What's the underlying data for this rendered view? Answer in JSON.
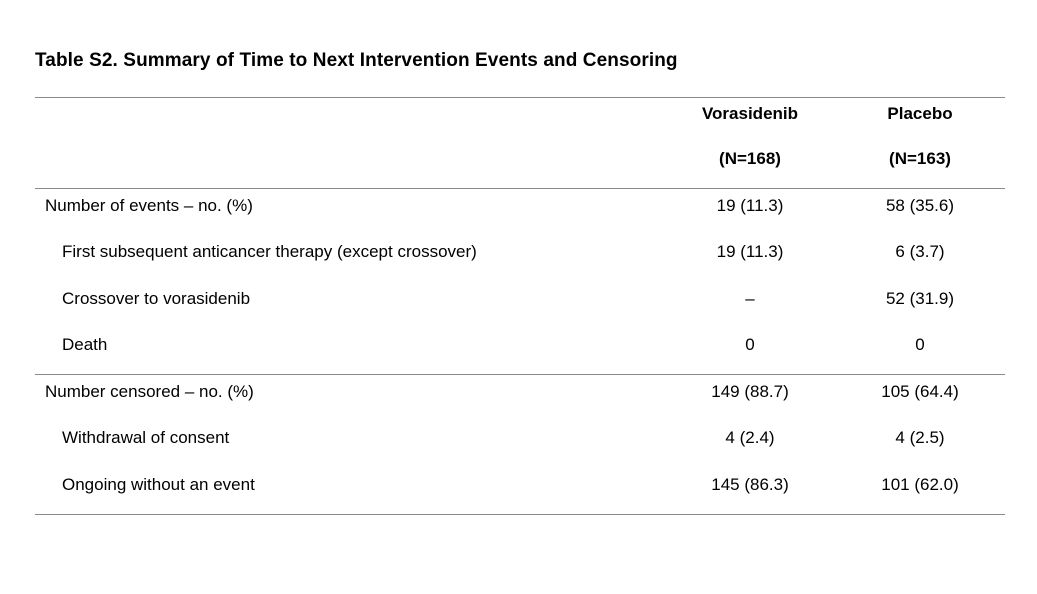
{
  "page": {
    "title": "Table S2. Summary of Time to Next Intervention Events and Censoring"
  },
  "table": {
    "columns": [
      {
        "line1": "Vorasidenib",
        "line2": "(N=168)"
      },
      {
        "line1": "Placebo",
        "line2": "(N=163)"
      }
    ],
    "sections": [
      {
        "rows": [
          {
            "label": "Number of events – no. (%)",
            "vorasidenib": "19 (11.3)",
            "placebo": "58 (35.6)"
          },
          {
            "label": "First subsequent anticancer therapy (except crossover)",
            "vorasidenib": "19 (11.3)",
            "placebo": "6 (3.7)"
          },
          {
            "label": "Crossover to vorasidenib",
            "vorasidenib": "–",
            "placebo": "52 (31.9)"
          },
          {
            "label": "Death",
            "vorasidenib": "0",
            "placebo": "0"
          }
        ]
      },
      {
        "rows": [
          {
            "label": "Number censored – no. (%)",
            "vorasidenib": "149 (88.7)",
            "placebo": "105 (64.4)"
          },
          {
            "label": "Withdrawal of consent",
            "vorasidenib": "4 (2.4)",
            "placebo": "4 (2.5)"
          },
          {
            "label": "Ongoing without an event",
            "vorasidenib": "145 (86.3)",
            "placebo": "101 (62.0)"
          }
        ]
      }
    ]
  }
}
